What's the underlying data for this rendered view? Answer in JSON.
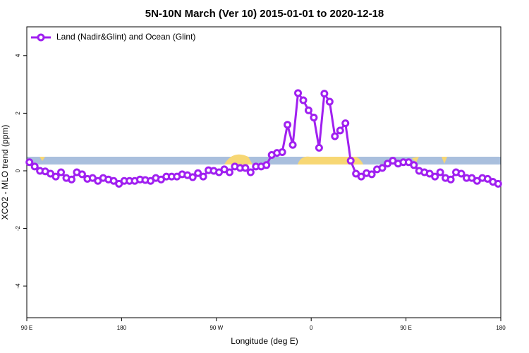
{
  "chart_data": {
    "type": "line",
    "title": "5N-10N March (Ver 10)   2015-01-01 to 2020-12-18",
    "x_label": "Longitude (deg E)",
    "y_label": "XCO2 - MLO trend (ppm)",
    "xlim": [
      90,
      540
    ],
    "ylim": [
      -5.1,
      5
    ],
    "xticks": [
      {
        "value": 90,
        "label": "90 E"
      },
      {
        "value": 180,
        "label": "180"
      },
      {
        "value": 270,
        "label": "90 W"
      },
      {
        "value": 360,
        "label": "0"
      },
      {
        "value": 450,
        "label": "90 E"
      },
      {
        "value": 540,
        "label": "180"
      }
    ],
    "yticks": [
      -4,
      -2,
      0,
      2,
      4
    ],
    "legend": "upper left",
    "x": [
      92.5,
      97.5,
      102.5,
      107.5,
      112.5,
      117.5,
      122.5,
      127.5,
      132.5,
      137.5,
      142.5,
      147.5,
      152.5,
      157.5,
      162.5,
      167.5,
      172.5,
      177.5,
      182.5,
      187.5,
      192.5,
      197.5,
      202.5,
      207.5,
      212.5,
      217.5,
      222.5,
      227.5,
      232.5,
      237.5,
      242.5,
      247.5,
      252.5,
      257.5,
      262.5,
      267.5,
      272.5,
      277.5,
      282.5,
      287.5,
      292.5,
      297.5,
      302.5,
      307.5,
      312.5,
      317.5,
      322.5,
      327.5,
      332.5,
      337.5,
      342.5,
      347.5,
      352.5,
      357.5,
      362.5,
      367.5,
      372.5,
      377.5,
      382.5,
      387.5,
      392.5,
      397.5,
      402.5,
      407.5,
      412.5,
      417.5,
      422.5,
      427.5,
      432.5,
      437.5,
      442.5,
      447.5,
      452.5,
      457.5,
      462.5,
      467.5,
      472.5,
      477.5,
      482.5,
      487.5,
      492.5,
      497.5,
      502.5,
      507.5,
      512.5,
      517.5,
      522.5,
      527.5,
      532.5,
      537.5
    ],
    "series": [
      {
        "name": "Land (Nadir&Glint) and Ocean (Glint)",
        "color": "#a020f0",
        "values": [
          0.3,
          0.15,
          0,
          -0.02,
          -0.1,
          -0.2,
          -0.05,
          -0.25,
          -0.3,
          -0.05,
          -0.12,
          -0.28,
          -0.25,
          -0.35,
          -0.25,
          -0.3,
          -0.35,
          -0.45,
          -0.35,
          -0.35,
          -0.35,
          -0.3,
          -0.32,
          -0.35,
          -0.25,
          -0.3,
          -0.2,
          -0.2,
          -0.2,
          -0.12,
          -0.15,
          -0.22,
          -0.08,
          -0.2,
          0.02,
          0,
          -0.05,
          0.05,
          -0.05,
          0.15,
          0.1,
          0.1,
          -0.05,
          0.15,
          0.15,
          0.2,
          0.55,
          0.62,
          0.65,
          1.6,
          0.9,
          2.7,
          2.45,
          2.1,
          1.85,
          0.8,
          2.68,
          2.4,
          1.2,
          1.4,
          1.65,
          0.35,
          -0.1,
          -0.2,
          -0.08,
          -0.12,
          0.05,
          0.1,
          0.25,
          0.35,
          0.25,
          0.3,
          0.3,
          0.2,
          0,
          -0.05,
          -0.1,
          -0.2,
          -0.05,
          -0.25,
          -0.3,
          -0.05,
          -0.1,
          -0.25,
          -0.25,
          -0.35,
          -0.25,
          -0.28,
          -0.38,
          -0.45
        ]
      }
    ]
  }
}
